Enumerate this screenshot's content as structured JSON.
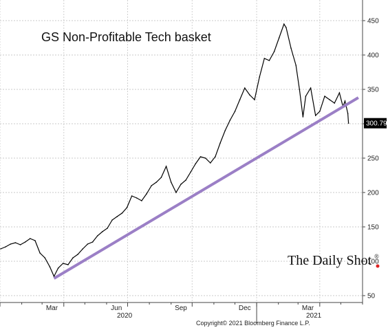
{
  "chart_data": {
    "type": "line",
    "title": "GS Non-Profitable Tech basket",
    "ylim": [
      40,
      480
    ],
    "y_ticks": [
      50,
      100,
      150,
      200,
      250,
      300,
      350,
      400,
      450
    ],
    "x_ticks": [
      "Mar",
      "Jun",
      "Sep",
      "Dec",
      "Mar"
    ],
    "x_years": [
      "2020",
      "2021"
    ],
    "last_value_label": "300.79",
    "watermark": "The Daily Shot",
    "copyright": "Copyright© 2021 Bloomberg Finance L.P.",
    "series": [
      {
        "color": "#000000",
        "points": [
          [
            "2020-01-02",
            118
          ],
          [
            "2020-01-09",
            121
          ],
          [
            "2020-01-16",
            125
          ],
          [
            "2020-01-23",
            127
          ],
          [
            "2020-01-30",
            124
          ],
          [
            "2020-02-06",
            128
          ],
          [
            "2020-02-13",
            133
          ],
          [
            "2020-02-20",
            130
          ],
          [
            "2020-02-27",
            112
          ],
          [
            "2020-03-05",
            105
          ],
          [
            "2020-03-12",
            92
          ],
          [
            "2020-03-18",
            78
          ],
          [
            "2020-03-24",
            90
          ],
          [
            "2020-03-31",
            97
          ],
          [
            "2020-04-07",
            95
          ],
          [
            "2020-04-14",
            105
          ],
          [
            "2020-04-21",
            110
          ],
          [
            "2020-04-28",
            118
          ],
          [
            "2020-05-05",
            125
          ],
          [
            "2020-05-12",
            128
          ],
          [
            "2020-05-19",
            137
          ],
          [
            "2020-05-26",
            143
          ],
          [
            "2020-06-02",
            148
          ],
          [
            "2020-06-09",
            160
          ],
          [
            "2020-06-16",
            165
          ],
          [
            "2020-06-23",
            170
          ],
          [
            "2020-06-30",
            178
          ],
          [
            "2020-07-07",
            195
          ],
          [
            "2020-07-14",
            192
          ],
          [
            "2020-07-21",
            188
          ],
          [
            "2020-07-28",
            198
          ],
          [
            "2020-08-04",
            210
          ],
          [
            "2020-08-11",
            215
          ],
          [
            "2020-08-18",
            222
          ],
          [
            "2020-08-25",
            238
          ],
          [
            "2020-09-01",
            215
          ],
          [
            "2020-09-08",
            200
          ],
          [
            "2020-09-15",
            212
          ],
          [
            "2020-09-22",
            218
          ],
          [
            "2020-09-29",
            230
          ],
          [
            "2020-10-06",
            242
          ],
          [
            "2020-10-13",
            252
          ],
          [
            "2020-10-20",
            250
          ],
          [
            "2020-10-27",
            243
          ],
          [
            "2020-11-03",
            252
          ],
          [
            "2020-11-10",
            272
          ],
          [
            "2020-11-17",
            290
          ],
          [
            "2020-11-24",
            305
          ],
          [
            "2020-12-01",
            318
          ],
          [
            "2020-12-08",
            335
          ],
          [
            "2020-12-15",
            352
          ],
          [
            "2020-12-22",
            342
          ],
          [
            "2020-12-29",
            335
          ],
          [
            "2021-01-05",
            368
          ],
          [
            "2021-01-12",
            395
          ],
          [
            "2021-01-19",
            392
          ],
          [
            "2021-01-26",
            405
          ],
          [
            "2021-02-02",
            425
          ],
          [
            "2021-02-09",
            445
          ],
          [
            "2021-02-12",
            440
          ],
          [
            "2021-02-19",
            410
          ],
          [
            "2021-02-26",
            385
          ],
          [
            "2021-03-03",
            350
          ],
          [
            "2021-03-08",
            310
          ],
          [
            "2021-03-12",
            340
          ],
          [
            "2021-03-19",
            352
          ],
          [
            "2021-03-26",
            312
          ],
          [
            "2021-04-01",
            318
          ],
          [
            "2021-04-08",
            340
          ],
          [
            "2021-04-15",
            335
          ],
          [
            "2021-04-22",
            330
          ],
          [
            "2021-04-29",
            345
          ],
          [
            "2021-05-04",
            325
          ],
          [
            "2021-05-07",
            333
          ],
          [
            "2021-05-11",
            315
          ],
          [
            "2021-05-12",
            300.79
          ]
        ]
      },
      {
        "color": "#9b7fc6",
        "points": [
          [
            "2020-03-18",
            75
          ],
          [
            "2021-05-26",
            338
          ]
        ]
      }
    ]
  }
}
